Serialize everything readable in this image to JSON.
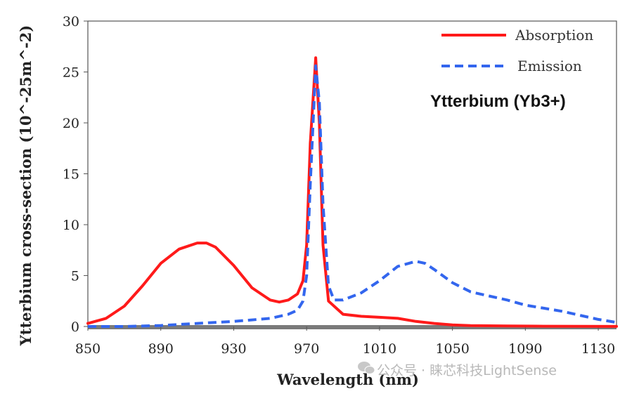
{
  "chart_data": {
    "type": "line",
    "title": "",
    "xlabel": "Wavelength (nm)",
    "ylabel": "Ytterbium cross-section (10^-25m^-2)",
    "xlim": [
      850,
      1140
    ],
    "ylim": [
      0,
      30
    ],
    "xticks": [
      850,
      890,
      930,
      970,
      1010,
      1050,
      1090,
      1130
    ],
    "yticks": [
      0,
      5,
      10,
      15,
      20,
      25,
      30
    ],
    "grid": false,
    "legend_position": "top-right",
    "annotation": "Ytterbium (Yb3+)",
    "series": [
      {
        "name": "Absorption",
        "color": "#ff1a1a",
        "style": "solid",
        "points": [
          [
            850,
            0.3
          ],
          [
            860,
            0.8
          ],
          [
            870,
            2
          ],
          [
            880,
            4
          ],
          [
            890,
            6.2
          ],
          [
            900,
            7.6
          ],
          [
            910,
            8.2
          ],
          [
            915,
            8.2
          ],
          [
            920,
            7.8
          ],
          [
            930,
            6
          ],
          [
            940,
            3.8
          ],
          [
            950,
            2.6
          ],
          [
            955,
            2.4
          ],
          [
            960,
            2.6
          ],
          [
            965,
            3.2
          ],
          [
            968,
            4.5
          ],
          [
            970,
            8
          ],
          [
            972,
            18
          ],
          [
            975,
            26.4
          ],
          [
            977,
            20
          ],
          [
            979,
            8
          ],
          [
            982,
            2.5
          ],
          [
            990,
            1.2
          ],
          [
            1000,
            1
          ],
          [
            1010,
            0.9
          ],
          [
            1020,
            0.8
          ],
          [
            1030,
            0.5
          ],
          [
            1040,
            0.3
          ],
          [
            1050,
            0.15
          ],
          [
            1060,
            0.08
          ],
          [
            1080,
            0.05
          ],
          [
            1100,
            0.03
          ],
          [
            1120,
            0.02
          ],
          [
            1140,
            0.01
          ]
        ]
      },
      {
        "name": "Emission",
        "color": "#3366ee",
        "style": "dashed",
        "points": [
          [
            850,
            0
          ],
          [
            870,
            0
          ],
          [
            890,
            0.1
          ],
          [
            910,
            0.3
          ],
          [
            930,
            0.5
          ],
          [
            950,
            0.8
          ],
          [
            960,
            1.2
          ],
          [
            965,
            1.6
          ],
          [
            968,
            2.5
          ],
          [
            970,
            5
          ],
          [
            972,
            14
          ],
          [
            975,
            25.6
          ],
          [
            977,
            22
          ],
          [
            979,
            12
          ],
          [
            982,
            4
          ],
          [
            985,
            2.6
          ],
          [
            990,
            2.6
          ],
          [
            1000,
            3.3
          ],
          [
            1010,
            4.5
          ],
          [
            1020,
            5.9
          ],
          [
            1030,
            6.4
          ],
          [
            1035,
            6.2
          ],
          [
            1040,
            5.6
          ],
          [
            1050,
            4.3
          ],
          [
            1060,
            3.4
          ],
          [
            1070,
            3
          ],
          [
            1080,
            2.6
          ],
          [
            1090,
            2.1
          ],
          [
            1100,
            1.8
          ],
          [
            1110,
            1.5
          ],
          [
            1120,
            1.1
          ],
          [
            1130,
            0.7
          ],
          [
            1140,
            0.4
          ]
        ]
      }
    ]
  },
  "watermark": {
    "icon": "wechat-icon",
    "text": "公众号 · 睐芯科技LightSense"
  }
}
